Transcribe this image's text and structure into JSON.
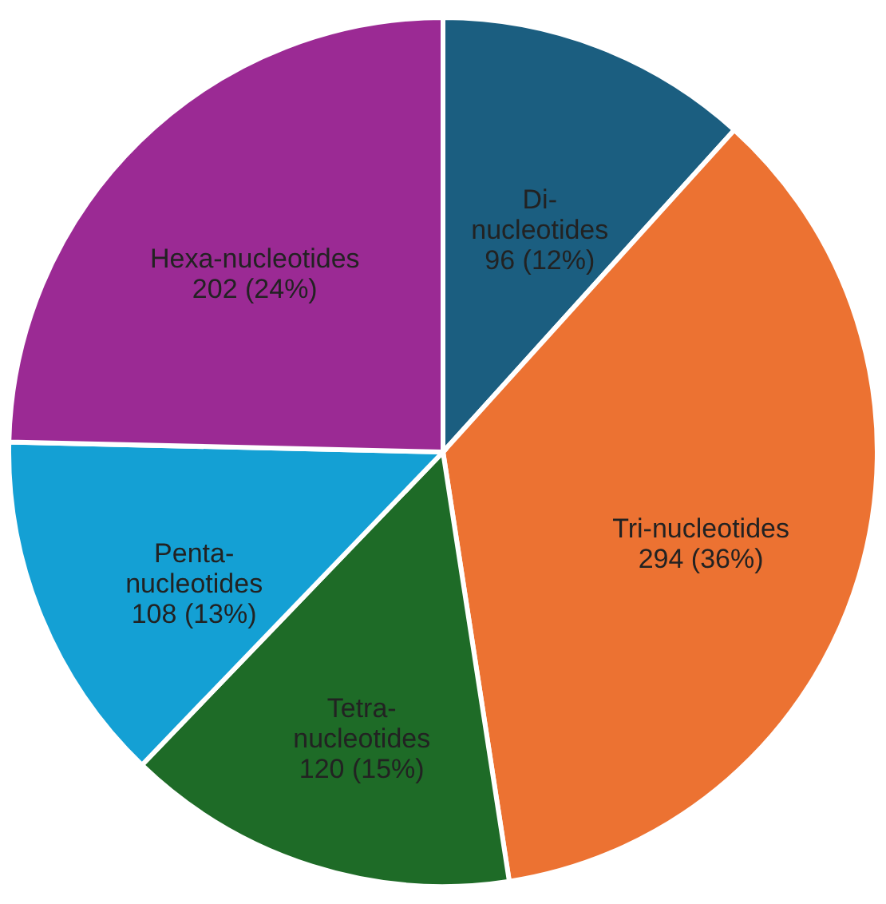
{
  "chart_data": {
    "type": "pie",
    "categories": [
      "Di-\nnucleotides",
      "Tri-nucleotides",
      "Tetra-\nnucleotides",
      "Penta-\nnucleotides",
      "Hexa-nucleotides"
    ],
    "values": [
      96,
      294,
      120,
      108,
      202
    ],
    "value_labels": [
      "96 (12%)",
      "294 (36%)",
      "120 (15%)",
      "108 (13%)",
      "202 (24%)"
    ],
    "colors": [
      "#1b5e80",
      "#ec7232",
      "#1e6b27",
      "#14a0d4",
      "#9b2a94"
    ],
    "legend": false
  }
}
